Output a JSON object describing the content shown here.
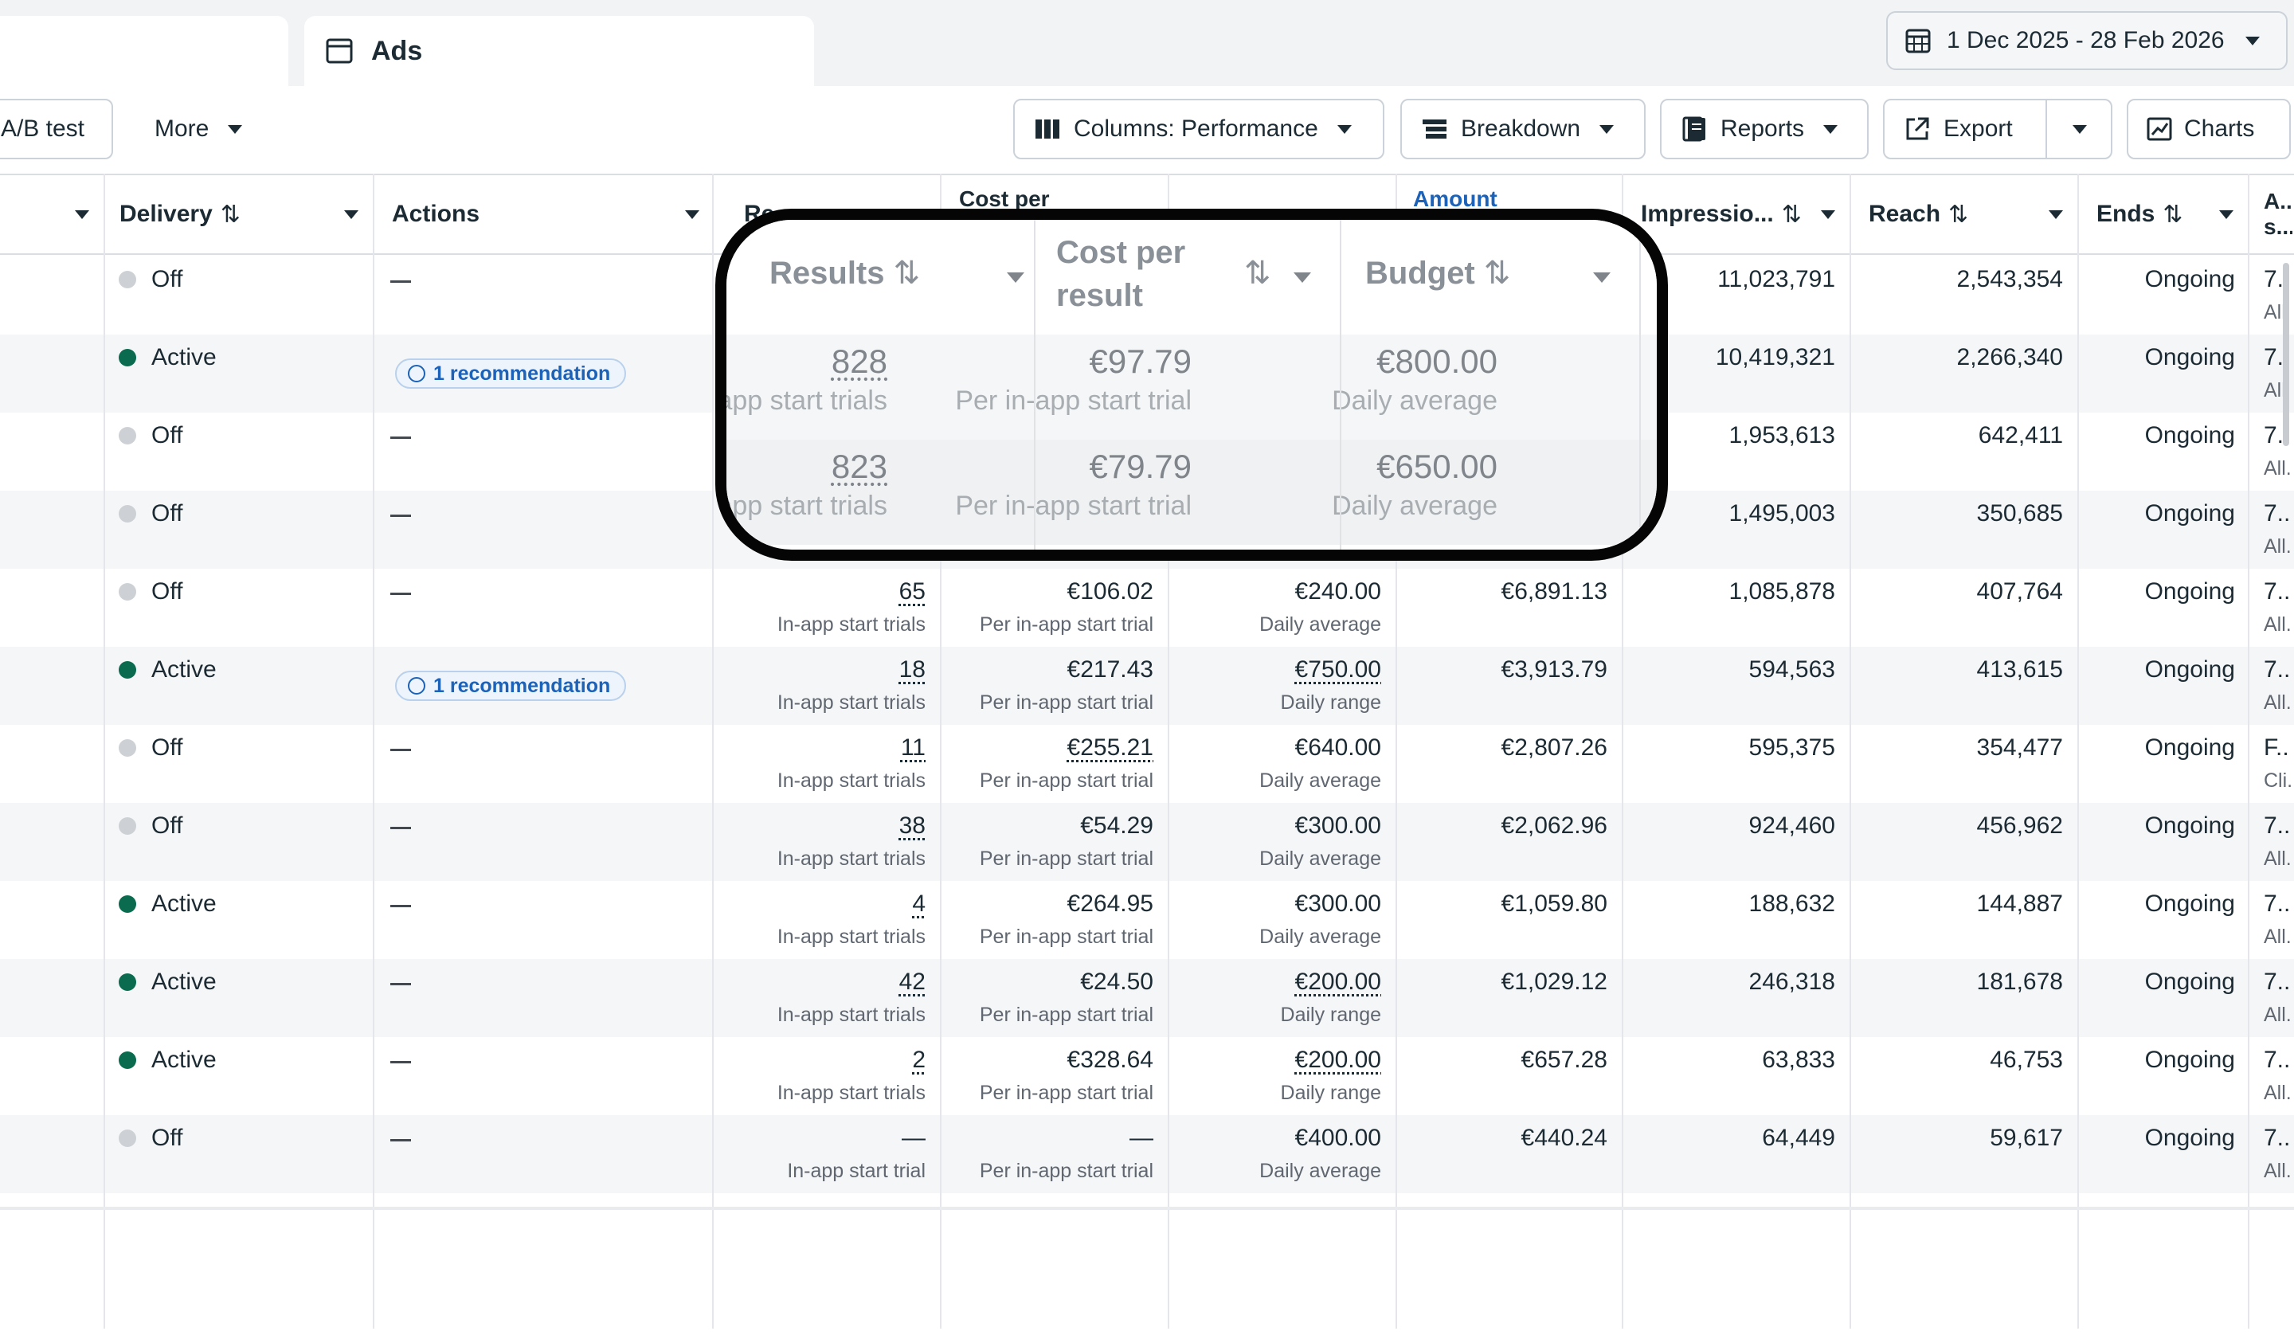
{
  "tabs": {
    "ads_label": "Ads"
  },
  "date_range": "1 Dec 2025 - 28 Feb 2026",
  "toolbar": {
    "ab_test": "A/B test",
    "more": "More",
    "columns": "Columns: Performance",
    "breakdown": "Breakdown",
    "reports": "Reports",
    "export": "Export",
    "charts": "Charts"
  },
  "headers": {
    "delivery": "Delivery",
    "actions": "Actions",
    "results": "Results",
    "cost_line1": "Cost per",
    "cost_line2": "result",
    "budget": "Budget",
    "amount": "Amount",
    "impressions": "Impressio...",
    "reach": "Reach",
    "ends": "Ends",
    "attribution": "A... s...",
    "partial_results": "Re",
    "partial_cost": "Cost per"
  },
  "recommendation_label": "1 recommendation",
  "rows": [
    {
      "delivery": "Off",
      "results": "",
      "results_sub": "",
      "cost": "",
      "cost_sub": "",
      "budget": "",
      "budget_sub": "",
      "amount": "",
      "impressions": "11,023,791",
      "reach": "2,543,354",
      "ends": "Ongoing",
      "attr": "7.",
      "attr_sub": "All"
    },
    {
      "delivery": "Active",
      "results": "",
      "results_sub": "",
      "cost": "",
      "cost_sub": "",
      "budget": "",
      "budget_sub": "",
      "amount": "",
      "impressions": "10,419,321",
      "reach": "2,266,340",
      "ends": "Ongoing",
      "attr": "7.",
      "attr_sub": "All"
    },
    {
      "delivery": "Off",
      "results": "",
      "results_sub": "",
      "cost": "",
      "cost_sub": "",
      "budget": "",
      "budget_sub": "",
      "amount": "",
      "impressions": "1,953,613",
      "reach": "642,411",
      "ends": "Ongoing",
      "attr": "7...",
      "attr_sub": "All..."
    },
    {
      "delivery": "Off",
      "results": "",
      "results_sub": "",
      "cost": "",
      "cost_sub": "",
      "budget": "",
      "budget_sub": "",
      "amount": "",
      "impressions": "1,495,003",
      "reach": "350,685",
      "ends": "Ongoing",
      "attr": "7...",
      "attr_sub": "All..."
    },
    {
      "delivery": "Off",
      "results": "65",
      "results_sub": "In-app start trials",
      "cost": "€106.02",
      "cost_sub": "Per in-app start trial",
      "budget": "€240.00",
      "budget_sub": "Daily average",
      "amount": "€6,891.13",
      "impressions": "1,085,878",
      "reach": "407,764",
      "ends": "Ongoing",
      "attr": "7...",
      "attr_sub": "All..."
    },
    {
      "delivery": "Active",
      "results": "18",
      "results_sub": "In-app start trials",
      "cost": "€217.43",
      "cost_sub": "Per in-app start trial",
      "budget": "€750.00",
      "budget_sub": "Daily range",
      "amount": "€3,913.79",
      "impressions": "594,563",
      "reach": "413,615",
      "ends": "Ongoing",
      "attr": "7...",
      "attr_sub": "All..."
    },
    {
      "delivery": "Off",
      "results": "11",
      "results_sub": "In-app start trials",
      "cost": "€255.21",
      "cost_sub": "Per in-app start trial",
      "budget": "€640.00",
      "budget_sub": "Daily average",
      "amount": "€2,807.26",
      "impressions": "595,375",
      "reach": "354,477",
      "ends": "Ongoing",
      "attr": "F...",
      "attr_sub": "Cli..."
    },
    {
      "delivery": "Off",
      "results": "38",
      "results_sub": "In-app start trials",
      "cost": "€54.29",
      "cost_sub": "Per in-app start trial",
      "budget": "€300.00",
      "budget_sub": "Daily average",
      "amount": "€2,062.96",
      "impressions": "924,460",
      "reach": "456,962",
      "ends": "Ongoing",
      "attr": "7...",
      "attr_sub": "All..."
    },
    {
      "delivery": "Active",
      "results": "4",
      "results_sub": "In-app start trials",
      "cost": "€264.95",
      "cost_sub": "Per in-app start trial",
      "budget": "€300.00",
      "budget_sub": "Daily average",
      "amount": "€1,059.80",
      "impressions": "188,632",
      "reach": "144,887",
      "ends": "Ongoing",
      "attr": "7...",
      "attr_sub": "All..."
    },
    {
      "delivery": "Active",
      "results": "42",
      "results_sub": "In-app start trials",
      "cost": "€24.50",
      "cost_sub": "Per in-app start trial",
      "budget": "€200.00",
      "budget_sub": "Daily range",
      "amount": "€1,029.12",
      "impressions": "246,318",
      "reach": "181,678",
      "ends": "Ongoing",
      "attr": "7...",
      "attr_sub": "All..."
    },
    {
      "delivery": "Active",
      "results": "2",
      "results_sub": "In-app start trials",
      "cost": "€328.64",
      "cost_sub": "Per in-app start trial",
      "budget": "€200.00",
      "budget_sub": "Daily range",
      "amount": "€657.28",
      "impressions": "63,833",
      "reach": "46,753",
      "ends": "Ongoing",
      "attr": "7...",
      "attr_sub": "All..."
    },
    {
      "delivery": "Off",
      "results": "—",
      "results_sub": "In-app start trial",
      "cost": "—",
      "cost_sub": "Per in-app start trial",
      "budget": "€400.00",
      "budget_sub": "Daily average",
      "amount": "€440.24",
      "impressions": "64,449",
      "reach": "59,617",
      "ends": "Ongoing",
      "attr": "7...",
      "attr_sub": "All..."
    }
  ],
  "callout": {
    "rows": [
      {
        "results": "828",
        "results_sub": "In-app start trials",
        "cost": "€97.79",
        "cost_sub": "Per in-app start trial",
        "budget": "€800.00",
        "budget_sub": "Daily average"
      },
      {
        "results": "823",
        "results_sub": "In-app start trials",
        "cost": "€79.79",
        "cost_sub": "Per in-app start trial",
        "budget": "€650.00",
        "budget_sub": "Daily average"
      }
    ]
  },
  "colors": {
    "active": "#0a6b4f",
    "off": "#cdd1d5",
    "link": "#1b62b8"
  }
}
